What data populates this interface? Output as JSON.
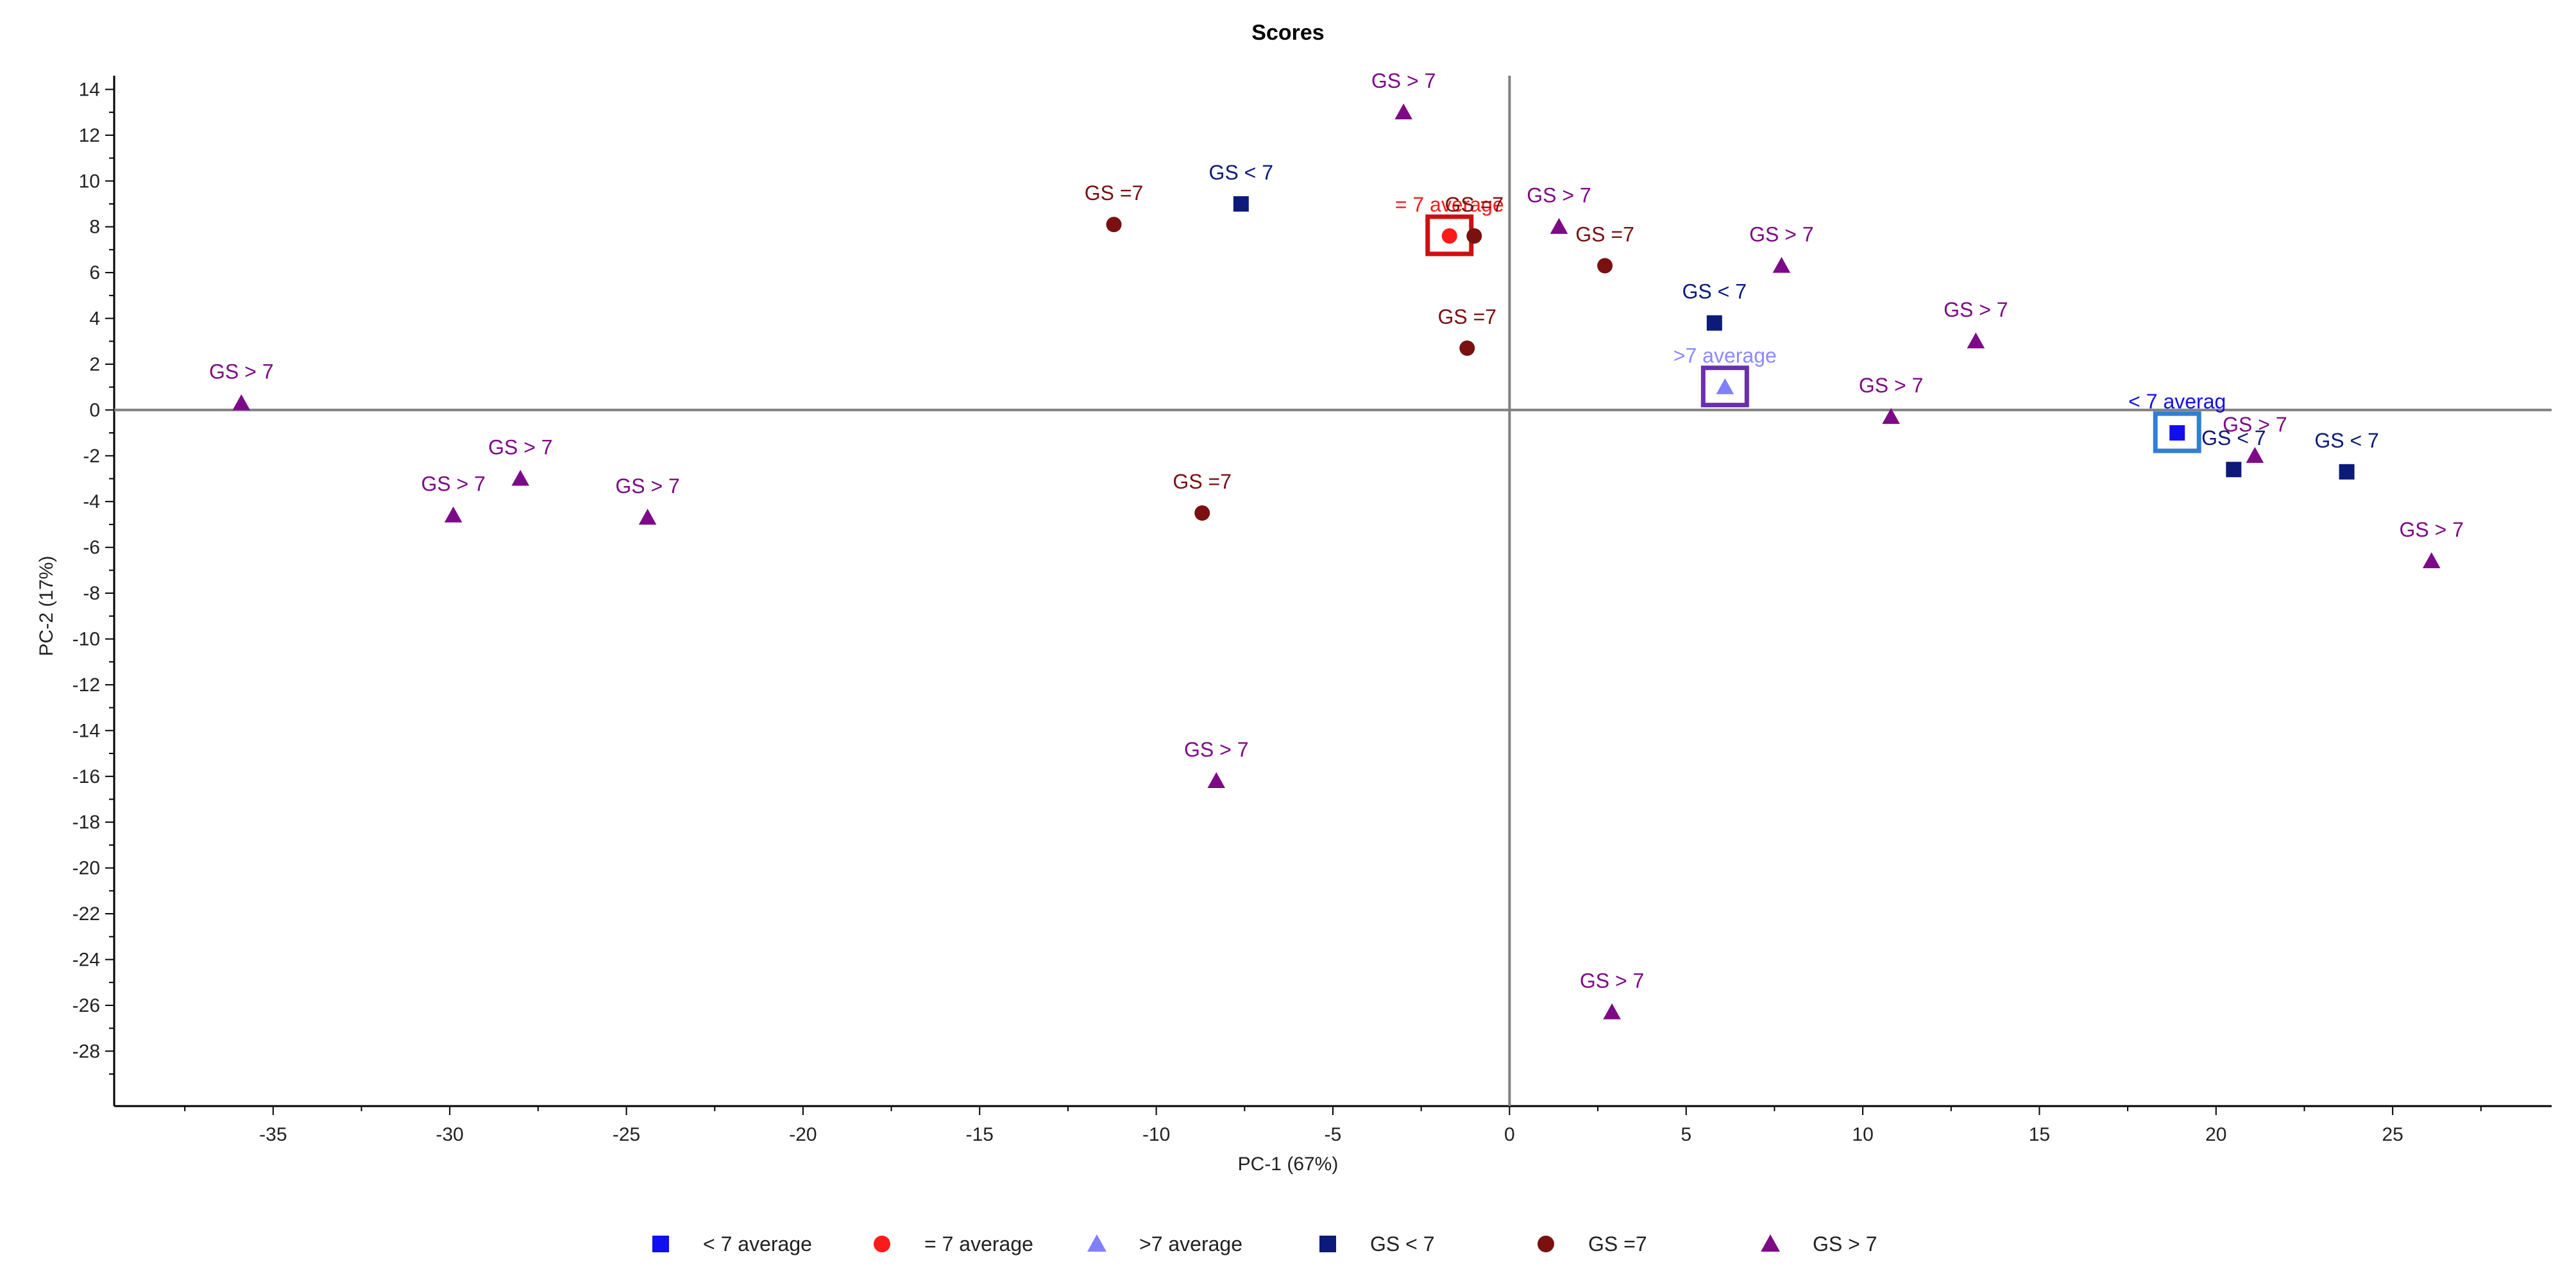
{
  "chart_data": {
    "type": "scatter",
    "title": "Scores",
    "xlabel": "PC-1 (67%)",
    "ylabel": "PC-2 (17%)",
    "xlim": [
      -39.5,
      29.5
    ],
    "ylim": [
      -30.4,
      14.6
    ],
    "xticks": [
      -35,
      -30,
      -25,
      -20,
      -15,
      -10,
      -5,
      0,
      5,
      10,
      15,
      20,
      25
    ],
    "yticks": [
      14,
      12,
      10,
      8,
      6,
      4,
      2,
      0,
      -2,
      -4,
      -6,
      -8,
      -10,
      -12,
      -14,
      -16,
      -18,
      -20,
      -22,
      -24,
      -26,
      -28
    ],
    "grid": false,
    "zero_lines": true,
    "legend_position": "bottom-center",
    "colors": {
      "lt7_average": "#1010ee",
      "eq7_average": "#ff1a1a",
      "gt7_average": "#8080ff",
      "gs_lt7": "#0c1a7a",
      "gs_eq7": "#7a1010",
      "gs_gt7": "#7d0a86",
      "gt7_average_label": "#8a8aff",
      "lt7_avg_box": "#2f7fd6",
      "eq7_avg_box": "#cc1010",
      "gt7_avg_box": "#6a2fb0",
      "axis": "#000000",
      "zero_line": "#808080"
    },
    "series": [
      {
        "name": "< 7 average",
        "marker": "square",
        "color_key": "lt7_average",
        "label_color_key": "lt7_average",
        "box_color_key": "lt7_avg_box",
        "points": [
          {
            "x": 18.9,
            "y": -1.0,
            "label": "< 7 averag"
          }
        ]
      },
      {
        "name": "= 7 average",
        "marker": "circle",
        "color_key": "eq7_average",
        "label_color_key": "eq7_average",
        "box_color_key": "eq7_avg_box",
        "points": [
          {
            "x": -1.7,
            "y": 7.6,
            "label": "= 7 average"
          }
        ]
      },
      {
        "name": ">7 average",
        "marker": "triangle",
        "color_key": "gt7_average",
        "label_color_key": "gt7_average_label",
        "box_color_key": "gt7_avg_box",
        "points": [
          {
            "x": 6.1,
            "y": 1.0,
            "label": ">7 average"
          }
        ]
      },
      {
        "name": "GS < 7",
        "marker": "square",
        "color_key": "gs_lt7",
        "label_color_key": "gs_lt7",
        "points": [
          {
            "x": -7.6,
            "y": 9.0,
            "label": "GS < 7"
          },
          {
            "x": 5.8,
            "y": 3.8,
            "label": "GS < 7"
          },
          {
            "x": 20.5,
            "y": -2.6,
            "label": "GS < 7"
          },
          {
            "x": 23.7,
            "y": -2.7,
            "label": "GS < 7"
          }
        ]
      },
      {
        "name": "GS =7",
        "marker": "circle",
        "color_key": "gs_eq7",
        "label_color_key": "gs_eq7",
        "points": [
          {
            "x": -11.2,
            "y": 8.1,
            "label": "GS =7"
          },
          {
            "x": -1.0,
            "y": 7.6,
            "label": "GS =7"
          },
          {
            "x": 2.7,
            "y": 6.3,
            "label": "GS =7"
          },
          {
            "x": -1.2,
            "y": 2.7,
            "label": "GS =7"
          },
          {
            "x": -8.7,
            "y": -4.5,
            "label": "GS =7"
          }
        ]
      },
      {
        "name": "GS > 7",
        "marker": "triangle",
        "color_key": "gs_gt7",
        "label_color_key": "gs_gt7",
        "points": [
          {
            "x": -3.0,
            "y": 13.0,
            "label": "GS > 7"
          },
          {
            "x": 1.4,
            "y": 8.0,
            "label": "GS > 7"
          },
          {
            "x": 7.7,
            "y": 6.3,
            "label": "GS > 7"
          },
          {
            "x": 13.2,
            "y": 3.0,
            "label": "GS > 7"
          },
          {
            "x": 10.8,
            "y": -0.3,
            "label": "GS > 7"
          },
          {
            "x": 21.1,
            "y": -2.0,
            "label": "GS > 7"
          },
          {
            "x": 26.1,
            "y": -6.6,
            "label": "GS > 7"
          },
          {
            "x": -35.9,
            "y": 0.3,
            "label": "GS > 7"
          },
          {
            "x": -28.0,
            "y": -3.0,
            "label": "GS > 7"
          },
          {
            "x": -29.9,
            "y": -4.6,
            "label": "GS > 7"
          },
          {
            "x": -24.4,
            "y": -4.7,
            "label": "GS > 7"
          },
          {
            "x": -8.3,
            "y": -16.2,
            "label": "GS > 7"
          },
          {
            "x": 2.9,
            "y": -26.3,
            "label": "GS > 7"
          }
        ]
      }
    ]
  }
}
